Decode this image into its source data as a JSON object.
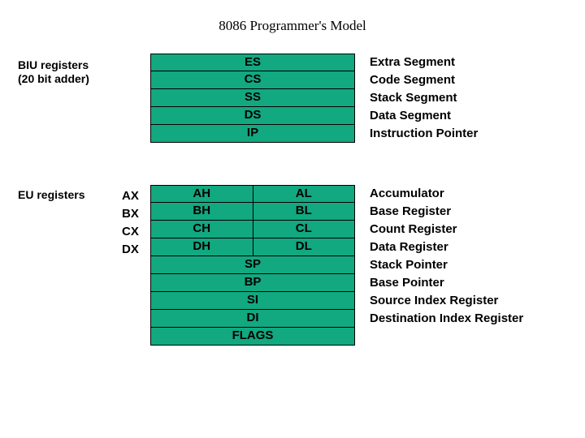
{
  "title": "8086 Programmer's Model",
  "biu_label_line1": "BIU registers",
  "biu_label_line2": "(20 bit adder)",
  "eu_label": "EU registers",
  "cell_bg": "#12a880",
  "biu_rows": [
    {
      "full": "ES",
      "desc": "Extra Segment"
    },
    {
      "full": "CS",
      "desc": "Code Segment"
    },
    {
      "full": "SS",
      "desc": "Stack Segment"
    },
    {
      "full": "DS",
      "desc": "Data Segment"
    },
    {
      "full": "IP",
      "desc": "Instruction Pointer"
    }
  ],
  "eu_split_rows": [
    {
      "name": "AX",
      "hi": "AH",
      "lo": "AL",
      "desc": "Accumulator"
    },
    {
      "name": "BX",
      "hi": "BH",
      "lo": "BL",
      "desc": "Base Register"
    },
    {
      "name": "CX",
      "hi": "CH",
      "lo": "CL",
      "desc": "Count Register"
    },
    {
      "name": "DX",
      "hi": "DH",
      "lo": "DL",
      "desc": "Data Register"
    }
  ],
  "eu_full_rows": [
    {
      "full": "SP",
      "desc": "Stack Pointer"
    },
    {
      "full": "BP",
      "desc": "Base Pointer"
    },
    {
      "full": "SI",
      "desc": "Source Index Register"
    },
    {
      "full": "DI",
      "desc": "Destination Index Register"
    },
    {
      "full": "FLAGS",
      "desc": ""
    }
  ]
}
